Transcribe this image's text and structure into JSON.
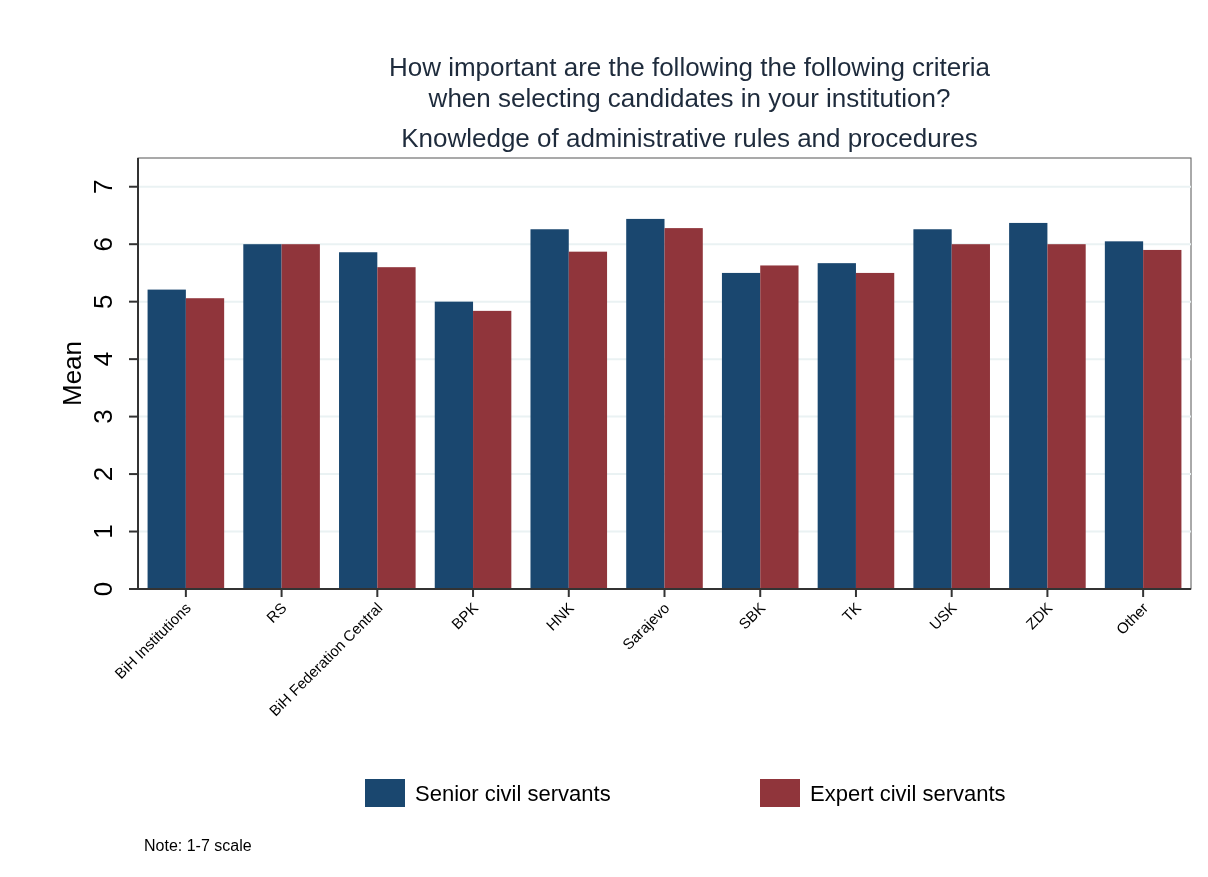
{
  "chart_data": {
    "type": "bar",
    "title": "How important are the following the following criteria\nwhen selecting candidates in your institution?",
    "subtitle": "Knowledge of administrative rules and procedures",
    "ylabel": "Mean",
    "categories": [
      "BiH Institutions",
      "RS",
      "BiH Federation Central",
      "BPK",
      "HNK",
      "Sarajevo",
      "SBK",
      "TK",
      "USK",
      "ZDK",
      "Other"
    ],
    "series": [
      {
        "name": "Senior civil servants",
        "color": "#1a476f",
        "values": [
          5.21,
          6.0,
          5.86,
          5.0,
          6.26,
          6.44,
          5.5,
          5.67,
          6.26,
          6.37,
          6.05
        ]
      },
      {
        "name": "Expert civil servants",
        "color": "#90353b",
        "values": [
          5.06,
          6.0,
          5.6,
          4.84,
          5.87,
          6.28,
          5.63,
          5.5,
          6.0,
          6.0,
          5.9
        ]
      }
    ],
    "ylim": [
      0,
      7.5
    ],
    "yticks": [
      0,
      1,
      2,
      3,
      4,
      5,
      6,
      7
    ],
    "grid": "y",
    "legend": "bottom",
    "annotations": [
      "Note: 1-7 scale"
    ]
  }
}
